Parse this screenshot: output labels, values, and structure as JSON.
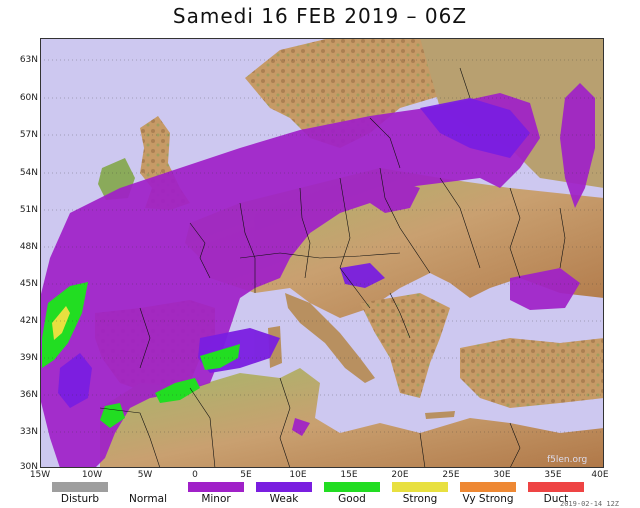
{
  "title": "Samedi 16 FEB 2019 – 06Z",
  "lat_labels": [
    "63N",
    "60N",
    "57N",
    "54N",
    "51N",
    "48N",
    "45N",
    "42N",
    "39N",
    "36N",
    "33N",
    "30N"
  ],
  "lon_labels": [
    "15W",
    "10W",
    "5W",
    "0",
    "5E",
    "10E",
    "15E",
    "20E",
    "25E",
    "30E",
    "35E",
    "40E"
  ],
  "legend": [
    {
      "label": "Disturb",
      "color": "#9e9e9e"
    },
    {
      "label": "Normal",
      "color": "#ffffff"
    },
    {
      "label": "Minor",
      "color": "#a020c8"
    },
    {
      "label": "Weak",
      "color": "#7a1ee0"
    },
    {
      "label": "Good",
      "color": "#22dd22"
    },
    {
      "label": "Strong",
      "color": "#e8e040"
    },
    {
      "label": "Vy Strong",
      "color": "#ee8833"
    },
    {
      "label": "Duct",
      "color": "#ee4444"
    }
  ],
  "colors": {
    "sea": "#cdc8f0",
    "land_low": "#7fa35c",
    "land_mid": "#c9a070",
    "land_high": "#a86a40",
    "minor": "#a020c8",
    "weak": "#7a1ee0",
    "good": "#22dd22",
    "strong": "#e8e040"
  },
  "watermark": "f5len.org",
  "timestamp": "2019-02-14 12Z"
}
